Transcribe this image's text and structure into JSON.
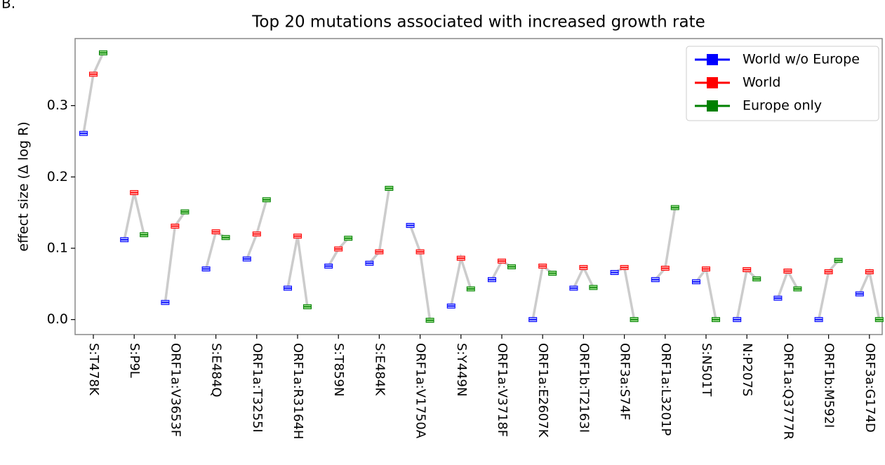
{
  "chart_data": {
    "type": "box",
    "panel_label": "B.",
    "title": "Top 20 mutations associated with increased growth rate",
    "y_label": "effect size  (Δ log R)",
    "categories": [
      "S:T478K",
      "S:P9L",
      "ORF1a:V3653F",
      "S:E484Q",
      "ORF1a:T3255I",
      "ORF1a:R3164H",
      "S:T859N",
      "S:E484K",
      "ORF1a:V1750A",
      "S:Y449N",
      "ORF1a:V3718F",
      "ORF1a:E2607K",
      "ORF1b:T2163I",
      "ORF3a:S74F",
      "ORF1a:L3201P",
      "S:N501T",
      "N:P207S",
      "ORF1a:Q3777R",
      "ORF1b:M592I",
      "ORF3a:G174D"
    ],
    "series": [
      {
        "name": "World w/o Europe",
        "color": "#0000ff",
        "values": [
          0.261,
          0.112,
          0.024,
          0.071,
          0.085,
          0.044,
          0.075,
          0.079,
          0.132,
          0.019,
          0.056,
          0.0,
          0.044,
          0.066,
          0.056,
          0.053,
          0.0,
          0.03,
          0.0,
          0.036
        ]
      },
      {
        "name": "World",
        "color": "#ff0000",
        "values": [
          0.344,
          0.178,
          0.131,
          0.123,
          0.12,
          0.117,
          0.099,
          0.095,
          0.095,
          0.086,
          0.082,
          0.075,
          0.073,
          0.073,
          0.072,
          0.071,
          0.07,
          0.068,
          0.067,
          0.067
        ]
      },
      {
        "name": "Europe only",
        "color": "#008000",
        "values": [
          0.374,
          0.119,
          0.151,
          0.115,
          0.168,
          0.018,
          0.114,
          0.184,
          -0.001,
          0.043,
          0.074,
          0.065,
          0.045,
          0.0,
          0.157,
          0.0,
          0.057,
          0.043,
          0.083,
          0.0
        ]
      }
    ],
    "ylim": [
      -0.021,
      0.394
    ],
    "yticks": [
      {
        "value": 0,
        "label": "0.0"
      },
      0.1,
      0.2,
      0.3
    ],
    "legend": "upper right"
  }
}
